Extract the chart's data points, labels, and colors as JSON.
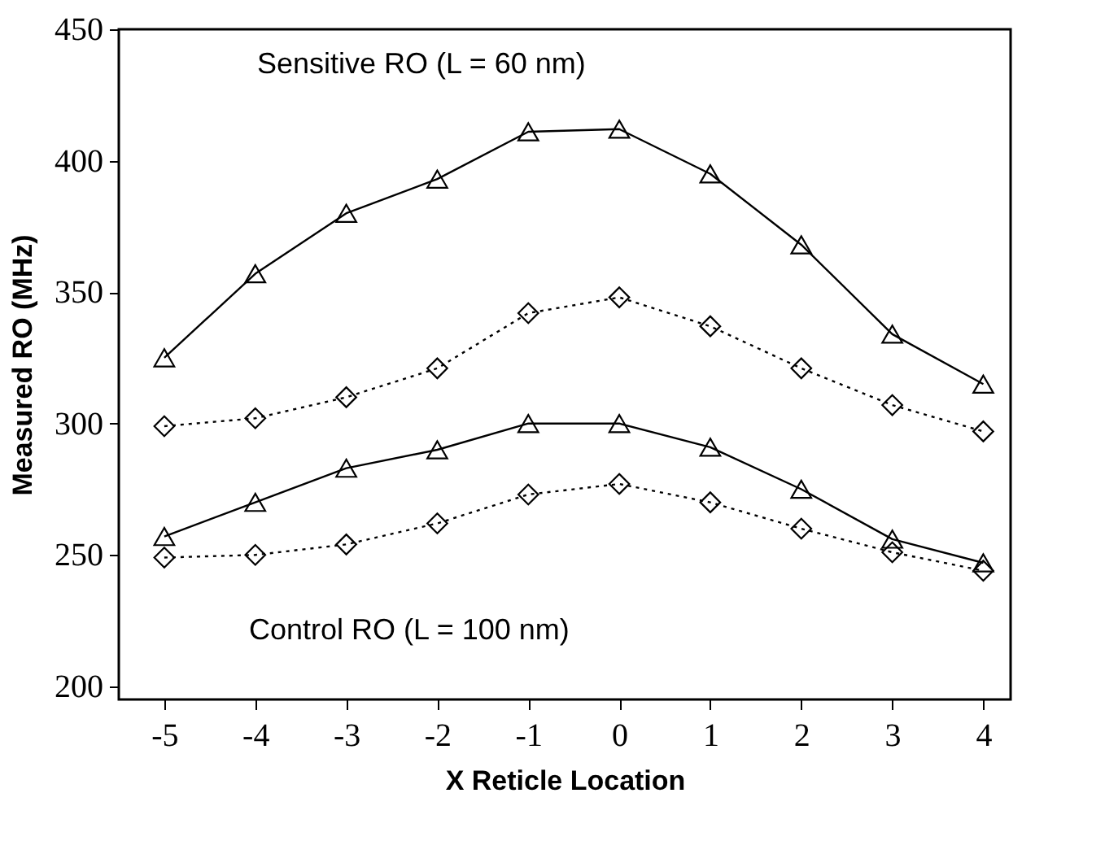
{
  "chart_data": {
    "type": "line",
    "xlabel": "X Reticle Location",
    "ylabel": "Measured RO (MHz)",
    "x": [
      -5,
      -4,
      -3,
      -2,
      -1,
      0,
      1,
      2,
      3,
      4
    ],
    "series": [
      {
        "color": "#000000",
        "marker": "triangle",
        "line_style": "solid",
        "values": [
          325,
          357,
          380,
          393,
          411,
          412,
          395,
          368,
          334,
          315
        ]
      },
      {
        "color": "#000000",
        "marker": "diamond",
        "line_style": "dotted",
        "values": [
          299,
          302,
          310,
          321,
          342,
          348,
          337,
          321,
          307,
          297
        ]
      },
      {
        "color": "#000000",
        "marker": "triangle",
        "line_style": "solid",
        "values": [
          257,
          270,
          283,
          290,
          300,
          300,
          291,
          275,
          256,
          247
        ]
      },
      {
        "color": "#000000",
        "marker": "diamond",
        "line_style": "dotted",
        "values": [
          249,
          250,
          254,
          262,
          273,
          277,
          270,
          260,
          251,
          244
        ]
      }
    ],
    "annotations": [
      "Sensitive RO (L = 60 nm)",
      "Control RO (L = 100 nm)"
    ],
    "xlim": [
      -5.5,
      4.3
    ],
    "xticks": [
      -5,
      -4,
      -3,
      -2,
      -1,
      0,
      1,
      2,
      3,
      4
    ],
    "ylim": [
      195,
      450
    ],
    "yticks": [
      200,
      250,
      300,
      350,
      400,
      450
    ],
    "grid": false
  }
}
